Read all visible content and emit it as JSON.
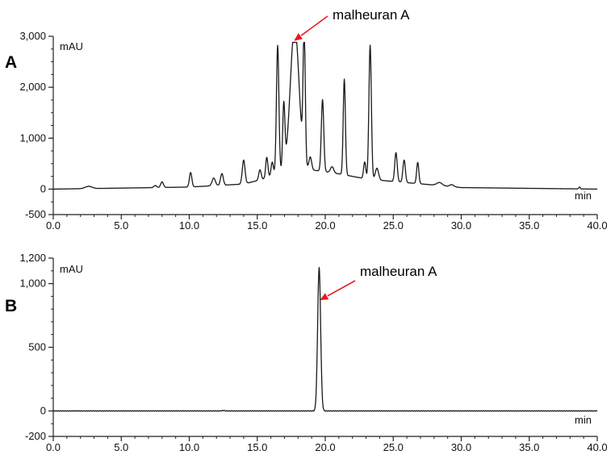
{
  "chart_data": [
    {
      "type": "line",
      "panel_label": "A",
      "y_unit": "mAU",
      "x_unit": "min",
      "xlim": [
        0,
        40
      ],
      "ylim": [
        -500,
        3000
      ],
      "x_ticks": [
        "0.0",
        "5.0",
        "10.0",
        "15.0",
        "20.0",
        "25.0",
        "30.0",
        "35.0",
        "40.0"
      ],
      "y_ticks": [
        {
          "value": 3000,
          "label": "3,000"
        },
        {
          "value": 2000,
          "label": "2,000"
        },
        {
          "value": 1000,
          "label": "1,000"
        },
        {
          "value": 0,
          "label": "0"
        },
        {
          "value": -500,
          "label": "-500"
        }
      ],
      "annotation": {
        "text": "malheuran A",
        "x": 17.7,
        "y": 2880,
        "color": "#e8191e"
      },
      "baseline": [
        [
          0,
          0
        ],
        [
          10,
          40
        ],
        [
          14,
          100
        ],
        [
          15.5,
          200
        ],
        [
          16.5,
          320
        ],
        [
          18,
          400
        ],
        [
          19.5,
          360
        ],
        [
          21,
          300
        ],
        [
          23,
          200
        ],
        [
          25,
          150
        ],
        [
          28,
          80
        ],
        [
          30,
          30
        ],
        [
          40,
          0
        ]
      ],
      "peaks": [
        {
          "x": 2.6,
          "h": 45,
          "w": 0.25
        },
        {
          "x": 7.5,
          "h": 40,
          "w": 0.1
        },
        {
          "x": 8.0,
          "h": 110,
          "w": 0.1
        },
        {
          "x": 10.1,
          "h": 285,
          "w": 0.09
        },
        {
          "x": 11.8,
          "h": 150,
          "w": 0.12
        },
        {
          "x": 12.4,
          "h": 230,
          "w": 0.1
        },
        {
          "x": 14.0,
          "h": 470,
          "w": 0.1
        },
        {
          "x": 15.2,
          "h": 200,
          "w": 0.09
        },
        {
          "x": 15.7,
          "h": 400,
          "w": 0.08
        },
        {
          "x": 16.1,
          "h": 260,
          "w": 0.08
        },
        {
          "x": 16.5,
          "h": 2500,
          "w": 0.09
        },
        {
          "x": 16.95,
          "h": 1260,
          "w": 0.08
        },
        {
          "x": 17.75,
          "h": 2800,
          "w": 0.32
        },
        {
          "x": 18.45,
          "h": 2550,
          "w": 0.08
        },
        {
          "x": 18.9,
          "h": 250,
          "w": 0.1
        },
        {
          "x": 19.8,
          "h": 1410,
          "w": 0.09
        },
        {
          "x": 20.5,
          "h": 120,
          "w": 0.12
        },
        {
          "x": 21.4,
          "h": 1880,
          "w": 0.08
        },
        {
          "x": 22.9,
          "h": 330,
          "w": 0.08
        },
        {
          "x": 23.3,
          "h": 2630,
          "w": 0.09
        },
        {
          "x": 23.8,
          "h": 230,
          "w": 0.12
        },
        {
          "x": 25.2,
          "h": 570,
          "w": 0.09
        },
        {
          "x": 25.8,
          "h": 440,
          "w": 0.09
        },
        {
          "x": 26.8,
          "h": 420,
          "w": 0.08
        },
        {
          "x": 28.4,
          "h": 60,
          "w": 0.2
        },
        {
          "x": 29.3,
          "h": 40,
          "w": 0.15
        },
        {
          "x": 38.7,
          "h": 40,
          "w": 0.05
        }
      ],
      "clip_max": 2880
    },
    {
      "type": "line",
      "panel_label": "B",
      "y_unit": "mAU",
      "x_unit": "min",
      "xlim": [
        0,
        40
      ],
      "ylim": [
        -200,
        1200
      ],
      "x_ticks": [
        "0.0",
        "5.0",
        "10.0",
        "15.0",
        "20.0",
        "25.0",
        "30.0",
        "35.0",
        "40.0"
      ],
      "y_ticks": [
        {
          "value": 1200,
          "label": "1,200"
        },
        {
          "value": 1000,
          "label": "1,000"
        },
        {
          "value": 500,
          "label": "500"
        },
        {
          "value": 0,
          "label": "0"
        },
        {
          "value": -200,
          "label": "-200"
        }
      ],
      "annotation": {
        "text": "malheuran A",
        "x": 19.6,
        "y": 870,
        "color": "#e8191e"
      },
      "baseline": [
        [
          0,
          0
        ],
        [
          40,
          0
        ]
      ],
      "peaks": [
        {
          "x": 19.55,
          "h": 1125,
          "w": 0.11
        },
        {
          "x": 12.5,
          "h": 4,
          "w": 0.1
        }
      ],
      "clip_max": 1200
    }
  ]
}
